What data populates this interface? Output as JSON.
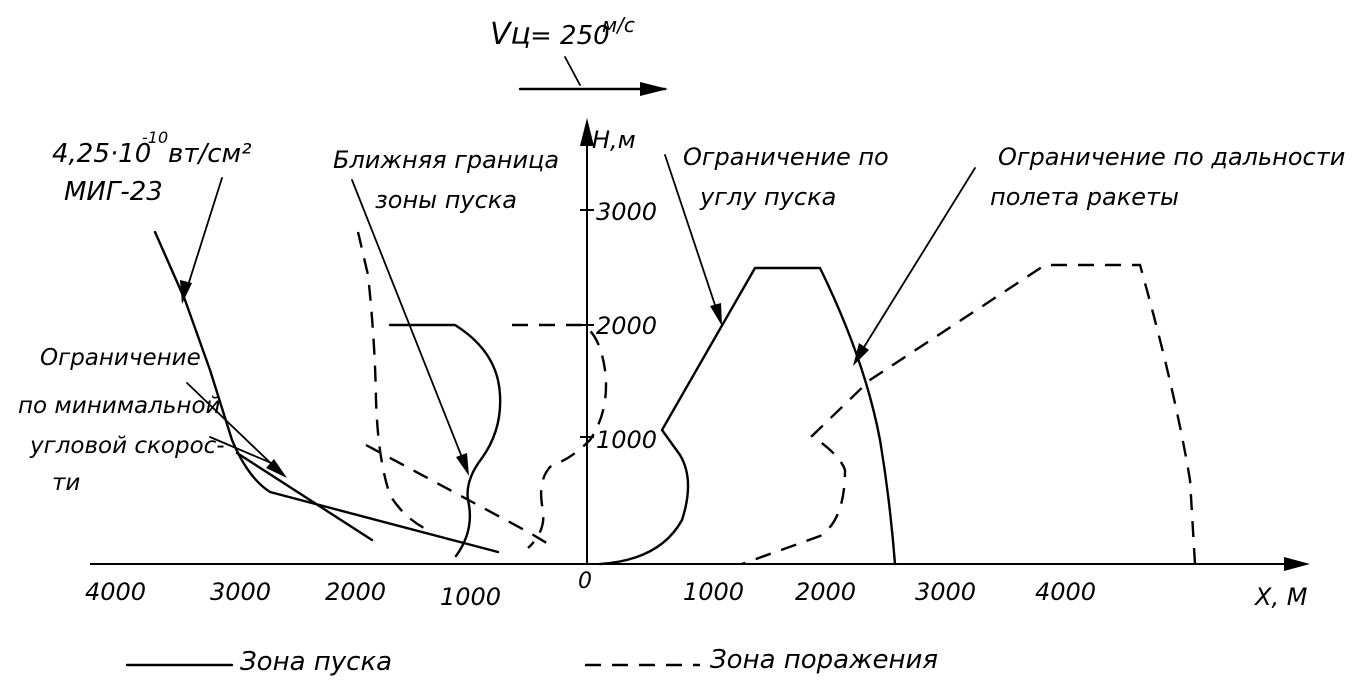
{
  "velocity": {
    "symbol": "Vц",
    "value": "= 250",
    "unit": "м/с"
  },
  "irradiance": {
    "label": "4,25·10",
    "exponent": "-10",
    "unit": "вт/см²"
  },
  "aircraft": "МИГ-23",
  "annotations": {
    "near_boundary": [
      "Ближняя граница",
      "зоны пуска"
    ],
    "angle_limit": [
      "Ограничение по",
      "углу пуска"
    ],
    "range_limit": [
      "Ограничение по дальности",
      "полета  ракеты"
    ],
    "min_angular_rate": [
      "Ограничение",
      "по минимальной",
      "угловой скорос-",
      "ти"
    ]
  },
  "axes": {
    "y_label": "Н,м",
    "x_label": "Х, М",
    "origin": "0",
    "y_ticks": [
      "3000",
      "2000",
      "1000"
    ],
    "x_ticks_left": [
      "4000",
      "3000",
      "2000",
      "1000"
    ],
    "x_ticks_right": [
      "1000",
      "2000",
      "3000",
      "4000"
    ]
  },
  "legend": {
    "solid": "Зона пуска",
    "dashed": "Зона поражения"
  }
}
